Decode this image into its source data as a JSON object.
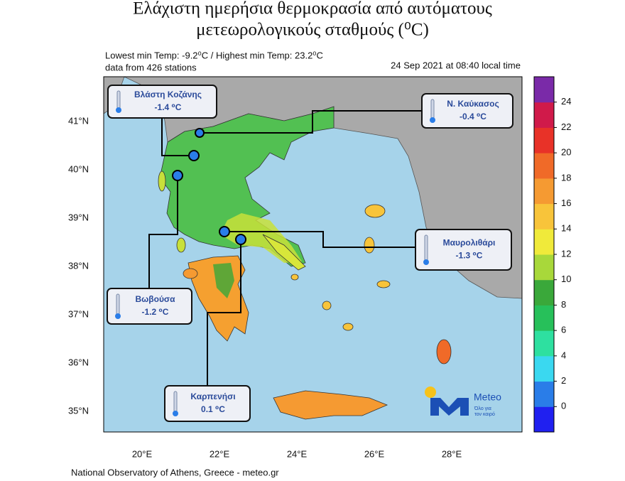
{
  "header": {
    "title_line1": "Ελάχιστη ημερήσια θερμοκρασία από αυτόματους",
    "title_line2": "μετεωρολογικούς σταθμούς (⁰C)"
  },
  "info": {
    "stats": "Lowest min Temp: -9.2⁰C / Highest min Temp: 23.2⁰C",
    "stations": "data from 426 stations",
    "timestamp": "24 Sep 2021 at 08:40 local time"
  },
  "stations": [
    {
      "name": "Βλάστη Κοζάνης",
      "value": "-1.4 ⁰C"
    },
    {
      "name": "Ν. Καύκασος",
      "value": "-0.4 ⁰C"
    },
    {
      "name": "Μαυρολιθάρι",
      "value": "-1.3 ⁰C"
    },
    {
      "name": "Βωβούσα",
      "value": "-1.2 ⁰C"
    },
    {
      "name": "Καρπενήσι",
      "value": "0.1 ⁰C"
    }
  ],
  "axes": {
    "lat_labels": [
      "41°N",
      "40°N",
      "39°N",
      "38°N",
      "37°N",
      "36°N",
      "35°N"
    ],
    "lon_labels": [
      "20°E",
      "22°E",
      "24°E",
      "26°E",
      "28°E"
    ]
  },
  "colorbar": {
    "ticks": [
      0,
      2,
      4,
      6,
      8,
      10,
      12,
      14,
      16,
      18,
      20,
      22,
      24
    ],
    "colors": [
      "#2020f0",
      "#2a7de8",
      "#3ad8f0",
      "#2ee0a0",
      "#27c05a",
      "#3aa83a",
      "#a8d83a",
      "#f0ea3a",
      "#f8c43a",
      "#f59a32",
      "#f06a28",
      "#e83228",
      "#d01a4a",
      "#7a2aa8"
    ]
  },
  "logo": {
    "name": "Meteo",
    "tagline_1": "Όλο για",
    "tagline_2": "τον καιρό"
  },
  "footer": "National Observatory of Athens, Greece - meteo.gr"
}
